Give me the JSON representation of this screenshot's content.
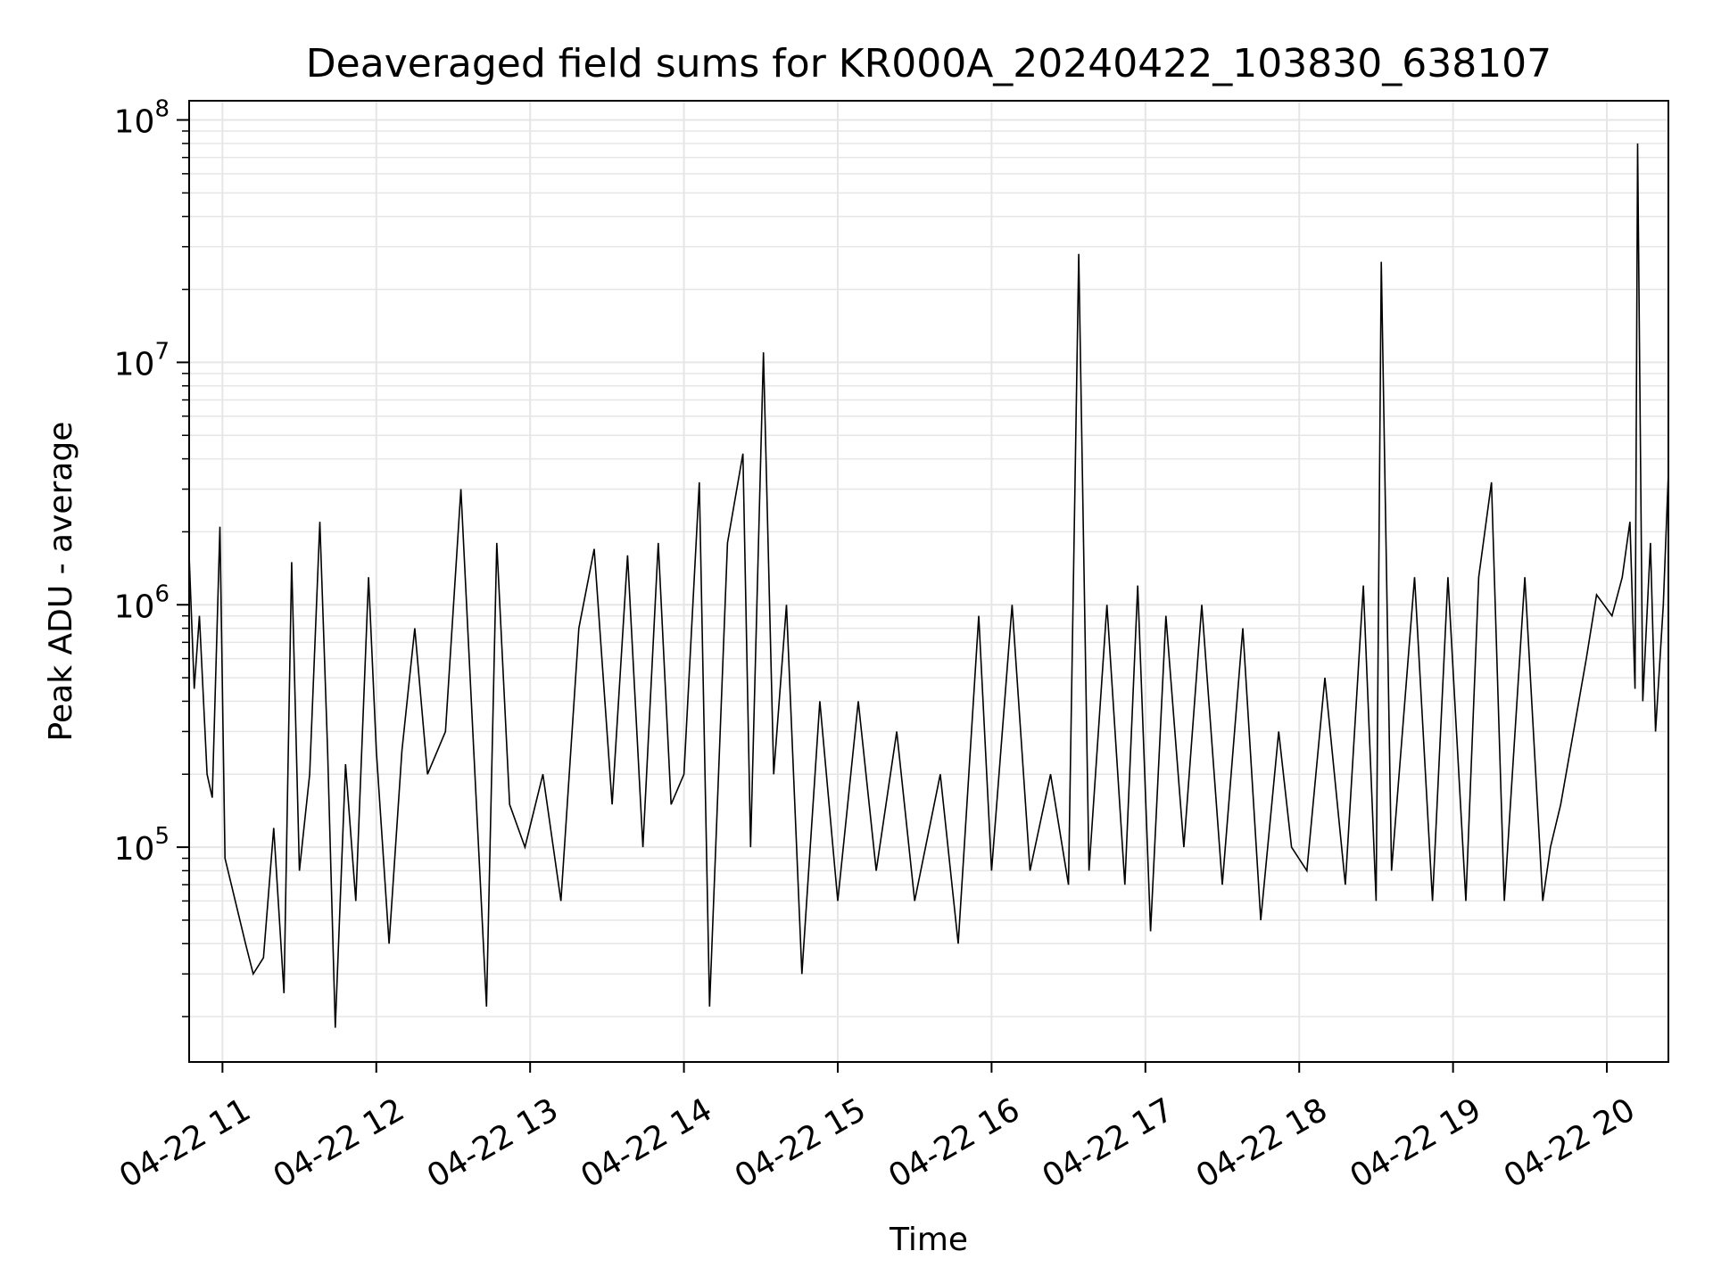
{
  "chart_data": {
    "type": "line",
    "title": "Deaveraged field sums for KR000A_20240422_103830_638107",
    "xlabel": "Time",
    "ylabel": "Peak ADU - average",
    "yscale": "log",
    "ylim": [
      13000,
      120000000
    ],
    "xlim": [
      "2024-04-22 10:47",
      "2024-04-22 20:24"
    ],
    "grid": true,
    "x_ticks": [
      {
        "time": "2024-04-22 11:00",
        "label": "04-22 11"
      },
      {
        "time": "2024-04-22 12:00",
        "label": "04-22 12"
      },
      {
        "time": "2024-04-22 13:00",
        "label": "04-22 13"
      },
      {
        "time": "2024-04-22 14:00",
        "label": "04-22 14"
      },
      {
        "time": "2024-04-22 15:00",
        "label": "04-22 15"
      },
      {
        "time": "2024-04-22 16:00",
        "label": "04-22 16"
      },
      {
        "time": "2024-04-22 17:00",
        "label": "04-22 17"
      },
      {
        "time": "2024-04-22 18:00",
        "label": "04-22 18"
      },
      {
        "time": "2024-04-22 19:00",
        "label": "04-22 19"
      },
      {
        "time": "2024-04-22 20:00",
        "label": "04-22 20"
      }
    ],
    "y_ticks": [
      {
        "value": 100000,
        "base": "10",
        "exp": "5"
      },
      {
        "value": 1000000,
        "base": "10",
        "exp": "6"
      },
      {
        "value": 10000000,
        "base": "10",
        "exp": "7"
      },
      {
        "value": 100000000,
        "base": "10",
        "exp": "8"
      }
    ],
    "series": [
      {
        "color": "#000000",
        "points": [
          [
            "2024-04-22 10:47",
            1600000
          ],
          [
            "2024-04-22 10:49",
            450000
          ],
          [
            "2024-04-22 10:51",
            900000
          ],
          [
            "2024-04-22 10:54",
            200000
          ],
          [
            "2024-04-22 10:56",
            160000
          ],
          [
            "2024-04-22 10:59",
            2100000
          ],
          [
            "2024-04-22 11:01",
            90000
          ],
          [
            "2024-04-22 11:05",
            60000
          ],
          [
            "2024-04-22 11:09",
            40000
          ],
          [
            "2024-04-22 11:12",
            30000
          ],
          [
            "2024-04-22 11:16",
            35000
          ],
          [
            "2024-04-22 11:20",
            120000
          ],
          [
            "2024-04-22 11:24",
            25000
          ],
          [
            "2024-04-22 11:27",
            1500000
          ],
          [
            "2024-04-22 11:30",
            80000
          ],
          [
            "2024-04-22 11:34",
            200000
          ],
          [
            "2024-04-22 11:38",
            2200000
          ],
          [
            "2024-04-22 11:41",
            250000
          ],
          [
            "2024-04-22 11:44",
            18000
          ],
          [
            "2024-04-22 11:48",
            220000
          ],
          [
            "2024-04-22 11:52",
            60000
          ],
          [
            "2024-04-22 11:57",
            1300000
          ],
          [
            "2024-04-22 12:00",
            250000
          ],
          [
            "2024-04-22 12:05",
            40000
          ],
          [
            "2024-04-22 12:10",
            250000
          ],
          [
            "2024-04-22 12:15",
            800000
          ],
          [
            "2024-04-22 12:20",
            200000
          ],
          [
            "2024-04-22 12:27",
            300000
          ],
          [
            "2024-04-22 12:33",
            3000000
          ],
          [
            "2024-04-22 12:38",
            250000
          ],
          [
            "2024-04-22 12:43",
            22000
          ],
          [
            "2024-04-22 12:47",
            1800000
          ],
          [
            "2024-04-22 12:52",
            150000
          ],
          [
            "2024-04-22 12:58",
            100000
          ],
          [
            "2024-04-22 13:05",
            200000
          ],
          [
            "2024-04-22 13:12",
            60000
          ],
          [
            "2024-04-22 13:19",
            800000
          ],
          [
            "2024-04-22 13:25",
            1700000
          ],
          [
            "2024-04-22 13:32",
            150000
          ],
          [
            "2024-04-22 13:38",
            1600000
          ],
          [
            "2024-04-22 13:44",
            100000
          ],
          [
            "2024-04-22 13:50",
            1800000
          ],
          [
            "2024-04-22 13:55",
            150000
          ],
          [
            "2024-04-22 14:00",
            200000
          ],
          [
            "2024-04-22 14:06",
            3200000
          ],
          [
            "2024-04-22 14:10",
            22000
          ],
          [
            "2024-04-22 14:17",
            1800000
          ],
          [
            "2024-04-22 14:23",
            4200000
          ],
          [
            "2024-04-22 14:26",
            100000
          ],
          [
            "2024-04-22 14:31",
            11000000
          ],
          [
            "2024-04-22 14:35",
            200000
          ],
          [
            "2024-04-22 14:40",
            1000000
          ],
          [
            "2024-04-22 14:46",
            30000
          ],
          [
            "2024-04-22 14:53",
            400000
          ],
          [
            "2024-04-22 15:00",
            60000
          ],
          [
            "2024-04-22 15:08",
            400000
          ],
          [
            "2024-04-22 15:15",
            80000
          ],
          [
            "2024-04-22 15:23",
            300000
          ],
          [
            "2024-04-22 15:30",
            60000
          ],
          [
            "2024-04-22 15:40",
            200000
          ],
          [
            "2024-04-22 15:47",
            40000
          ],
          [
            "2024-04-22 15:55",
            900000
          ],
          [
            "2024-04-22 16:00",
            80000
          ],
          [
            "2024-04-22 16:08",
            1000000
          ],
          [
            "2024-04-22 16:15",
            80000
          ],
          [
            "2024-04-22 16:23",
            200000
          ],
          [
            "2024-04-22 16:30",
            70000
          ],
          [
            "2024-04-22 16:34",
            28000000
          ],
          [
            "2024-04-22 16:38",
            80000
          ],
          [
            "2024-04-22 16:45",
            1000000
          ],
          [
            "2024-04-22 16:52",
            70000
          ],
          [
            "2024-04-22 16:57",
            1200000
          ],
          [
            "2024-04-22 17:02",
            45000
          ],
          [
            "2024-04-22 17:08",
            900000
          ],
          [
            "2024-04-22 17:15",
            100000
          ],
          [
            "2024-04-22 17:22",
            1000000
          ],
          [
            "2024-04-22 17:30",
            70000
          ],
          [
            "2024-04-22 17:38",
            800000
          ],
          [
            "2024-04-22 17:45",
            50000
          ],
          [
            "2024-04-22 17:52",
            300000
          ],
          [
            "2024-04-22 17:57",
            100000
          ],
          [
            "2024-04-22 18:03",
            80000
          ],
          [
            "2024-04-22 18:10",
            500000
          ],
          [
            "2024-04-22 18:18",
            70000
          ],
          [
            "2024-04-22 18:25",
            1200000
          ],
          [
            "2024-04-22 18:30",
            60000
          ],
          [
            "2024-04-22 18:32",
            26000000
          ],
          [
            "2024-04-22 18:36",
            80000
          ],
          [
            "2024-04-22 18:45",
            1300000
          ],
          [
            "2024-04-22 18:52",
            60000
          ],
          [
            "2024-04-22 18:58",
            1300000
          ],
          [
            "2024-04-22 19:05",
            60000
          ],
          [
            "2024-04-22 19:10",
            1300000
          ],
          [
            "2024-04-22 19:15",
            3200000
          ],
          [
            "2024-04-22 19:20",
            60000
          ],
          [
            "2024-04-22 19:28",
            1300000
          ],
          [
            "2024-04-22 19:35",
            60000
          ],
          [
            "2024-04-22 19:38",
            100000
          ],
          [
            "2024-04-22 19:42",
            150000
          ],
          [
            "2024-04-22 19:47",
            300000
          ],
          [
            "2024-04-22 19:52",
            600000
          ],
          [
            "2024-04-22 19:56",
            1100000
          ],
          [
            "2024-04-22 20:02",
            900000
          ],
          [
            "2024-04-22 20:06",
            1300000
          ],
          [
            "2024-04-22 20:09",
            2200000
          ],
          [
            "2024-04-22 20:11",
            450000
          ],
          [
            "2024-04-22 20:12",
            80000000
          ],
          [
            "2024-04-22 20:14",
            400000
          ],
          [
            "2024-04-22 20:17",
            1800000
          ],
          [
            "2024-04-22 20:19",
            300000
          ],
          [
            "2024-04-22 20:22",
            1000000
          ],
          [
            "2024-04-22 20:24",
            3500000
          ]
        ]
      }
    ]
  }
}
